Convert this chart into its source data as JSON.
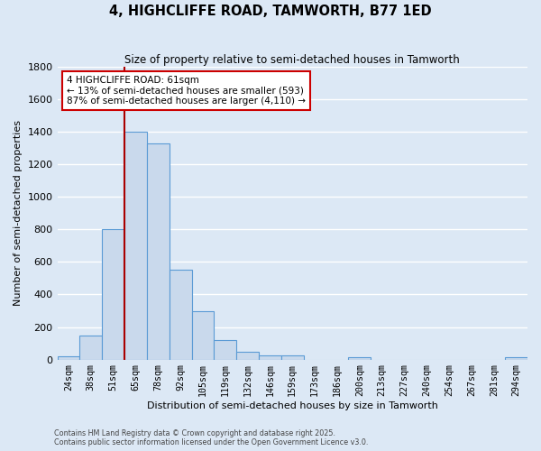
{
  "title": "4, HIGHCLIFFE ROAD, TAMWORTH, B77 1ED",
  "subtitle": "Size of property relative to semi-detached houses in Tamworth",
  "xlabel": "Distribution of semi-detached houses by size in Tamworth",
  "ylabel": "Number of semi-detached properties",
  "bar_labels": [
    "24sqm",
    "38sqm",
    "51sqm",
    "65sqm",
    "78sqm",
    "92sqm",
    "105sqm",
    "119sqm",
    "132sqm",
    "146sqm",
    "159sqm",
    "173sqm",
    "186sqm",
    "200sqm",
    "213sqm",
    "227sqm",
    "240sqm",
    "254sqm",
    "267sqm",
    "281sqm",
    "294sqm"
  ],
  "bar_values": [
    20,
    150,
    800,
    1400,
    1330,
    550,
    300,
    120,
    50,
    25,
    25,
    0,
    0,
    15,
    0,
    0,
    0,
    0,
    0,
    0,
    15
  ],
  "bar_color": "#c9d9ec",
  "bar_edge_color": "#5b9bd5",
  "background_color": "#dce8f5",
  "grid_color": "#ffffff",
  "vline_color": "#aa0000",
  "vline_position": 2.5,
  "annotation_title": "4 HIGHCLIFFE ROAD: 61sqm",
  "annotation_line1": "← 13% of semi-detached houses are smaller (593)",
  "annotation_line2": "87% of semi-detached houses are larger (4,110) →",
  "annotation_box_color": "#ffffff",
  "annotation_edge_color": "#cc0000",
  "ylim": [
    0,
    1800
  ],
  "yticks": [
    0,
    200,
    400,
    600,
    800,
    1000,
    1200,
    1400,
    1600,
    1800
  ],
  "footnote1": "Contains HM Land Registry data © Crown copyright and database right 2025.",
  "footnote2": "Contains public sector information licensed under the Open Government Licence v3.0."
}
